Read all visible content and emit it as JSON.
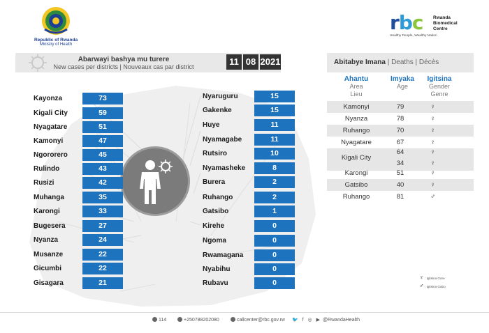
{
  "header": {
    "gov_line1": "Republic of Rwanda",
    "gov_line2": "Ministry of Health",
    "rbc_letters": [
      "r",
      "b",
      "c"
    ],
    "rbc_name_line1": "Rwanda",
    "rbc_name_line2": "Biomedical",
    "rbc_name_line3": "Centre",
    "rbc_tagline": "Healthy People, Wealthy Nation"
  },
  "title": {
    "main": "Abarwayi bashya mu turere",
    "sub": "New cases per districts  |  Nouveaux cas par district",
    "date_day": "11",
    "date_month": "08",
    "date_year": "2021"
  },
  "cases_left": [
    {
      "district": "Kayonza",
      "cases": "73"
    },
    {
      "district": "Kigali City",
      "cases": "59"
    },
    {
      "district": "Nyagatare",
      "cases": "51"
    },
    {
      "district": "Kamonyi",
      "cases": "47"
    },
    {
      "district": "Ngororero",
      "cases": "45"
    },
    {
      "district": "Rulindo",
      "cases": "43"
    },
    {
      "district": "Rusizi",
      "cases": "42"
    },
    {
      "district": "Muhanga",
      "cases": "35"
    },
    {
      "district": "Karongi",
      "cases": "33"
    },
    {
      "district": "Bugesera",
      "cases": "27"
    },
    {
      "district": "Nyanza",
      "cases": "24"
    },
    {
      "district": "Musanze",
      "cases": "22"
    },
    {
      "district": "Gicumbi",
      "cases": "22"
    },
    {
      "district": "Gisagara",
      "cases": "21"
    }
  ],
  "cases_right": [
    {
      "district": "Nyaruguru",
      "cases": "15"
    },
    {
      "district": "Gakenke",
      "cases": "15"
    },
    {
      "district": "Huye",
      "cases": "11"
    },
    {
      "district": "Nyamagabe",
      "cases": "11"
    },
    {
      "district": "Rutsiro",
      "cases": "10"
    },
    {
      "district": "Nyamasheke",
      "cases": "8"
    },
    {
      "district": "Burera",
      "cases": "2"
    },
    {
      "district": "Ruhango",
      "cases": "2"
    },
    {
      "district": "Gatsibo",
      "cases": "1"
    },
    {
      "district": "Kirehe",
      "cases": "0"
    },
    {
      "district": "Ngoma",
      "cases": "0"
    },
    {
      "district": "Rwamagana",
      "cases": "0"
    },
    {
      "district": "Nyabihu",
      "cases": "0"
    },
    {
      "district": "Rubavu",
      "cases": "0"
    }
  ],
  "deaths": {
    "header_bold": "Abitabye Imana",
    "header_rest": "  |  Deaths  |  Décès",
    "col_area": {
      "title": "Ahantu",
      "l1": "Area",
      "l2": "Lieu"
    },
    "col_age": {
      "title": "Imyaka",
      "l1": "Age"
    },
    "col_gender": {
      "title": "Igitsina",
      "l1": "Gender",
      "l2": "Genre"
    },
    "rows": [
      {
        "area": "Kamonyi",
        "ages": [
          "79"
        ],
        "genders": [
          "female"
        ]
      },
      {
        "area": "Nyanza",
        "ages": [
          "78"
        ],
        "genders": [
          "female"
        ]
      },
      {
        "area": "Ruhango",
        "ages": [
          "70"
        ],
        "genders": [
          "female"
        ]
      },
      {
        "area": "Nyagatare",
        "ages": [
          "67"
        ],
        "genders": [
          "female"
        ]
      },
      {
        "area": "Kigali City",
        "ages": [
          "64",
          "34"
        ],
        "genders": [
          "female",
          "female"
        ]
      },
      {
        "area": "Karongi",
        "ages": [
          "51"
        ],
        "genders": [
          "female"
        ]
      },
      {
        "area": "Gatsibo",
        "ages": [
          "40"
        ],
        "genders": [
          "female"
        ]
      },
      {
        "area": "Ruhango",
        "ages": [
          "81"
        ],
        "genders": [
          "male"
        ]
      }
    ],
    "legend_female": ": Igitsina Gore",
    "legend_male": ": Igitsina Gabo"
  },
  "footer": {
    "phone_short": "114",
    "phone_long": "+250788202080",
    "email": "callcenter@rbc.gov.rw",
    "social": "@RwandaHealth"
  },
  "colors": {
    "value_box": "#1e73be",
    "date_box": "#333333",
    "accent_blue": "#1e73be"
  }
}
